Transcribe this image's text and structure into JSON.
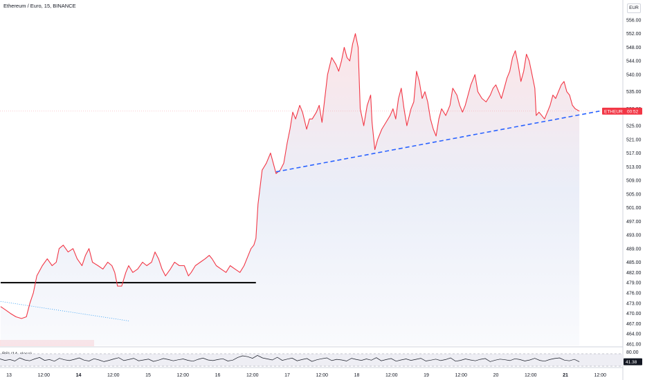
{
  "header": {
    "title": "Ethereum / Euro, 15, BINANCE",
    "currency": "EUR"
  },
  "rsi": {
    "label": "RSI (14, close)",
    "upper_label": "80.00",
    "current_label": "41.38",
    "current": 41.38,
    "upper": 80,
    "lower": 20
  },
  "price_badge": {
    "symbol": "ETHEUR",
    "countdown": "00:52",
    "price": 529.3
  },
  "colors": {
    "price_line": "#f23645",
    "area_fill": "#dfe6f5",
    "trendline": "#2962ff",
    "support_line": "#000000",
    "dotted_line": "#2196f3",
    "rsi_line": "#131722"
  },
  "chart_data": {
    "type": "line",
    "title": "Ethereum / Euro, 15, BINANCE",
    "ylim": [
      460,
      557
    ],
    "y_ticks": [
      461,
      464,
      467,
      470,
      473,
      476,
      479,
      482,
      485,
      489,
      493,
      497,
      501,
      505,
      509,
      513,
      517,
      521,
      525,
      530,
      535,
      540,
      544,
      548,
      552,
      556
    ],
    "x_range_days": [
      12.88,
      21.2
    ],
    "x_ticks": [
      {
        "day": 13,
        "label": "13",
        "bold": false
      },
      {
        "day": 13.5,
        "label": "12:00",
        "bold": false
      },
      {
        "day": 14,
        "label": "14",
        "bold": true
      },
      {
        "day": 14.5,
        "label": "12:00",
        "bold": false
      },
      {
        "day": 15,
        "label": "15",
        "bold": false
      },
      {
        "day": 15.5,
        "label": "12:00",
        "bold": false
      },
      {
        "day": 16,
        "label": "16",
        "bold": false
      },
      {
        "day": 16.5,
        "label": "12:00",
        "bold": false
      },
      {
        "day": 17,
        "label": "17",
        "bold": false
      },
      {
        "day": 17.5,
        "label": "12:00",
        "bold": false
      },
      {
        "day": 18,
        "label": "18",
        "bold": false
      },
      {
        "day": 18.5,
        "label": "12:00",
        "bold": false
      },
      {
        "day": 19,
        "label": "19",
        "bold": false
      },
      {
        "day": 19.5,
        "label": "12:00",
        "bold": false
      },
      {
        "day": 20,
        "label": "20",
        "bold": false
      },
      {
        "day": 20.5,
        "label": "12:00",
        "bold": false
      },
      {
        "day": 21,
        "label": "21",
        "bold": true
      },
      {
        "day": 21.5,
        "label": "12:00",
        "bold": false
      }
    ],
    "series": [
      {
        "points": [
          [
            12.88,
            472
          ],
          [
            12.95,
            471
          ],
          [
            13.02,
            470
          ],
          [
            13.1,
            469
          ],
          [
            13.18,
            468.5
          ],
          [
            13.25,
            469
          ],
          [
            13.3,
            473
          ],
          [
            13.35,
            476
          ],
          [
            13.4,
            481
          ],
          [
            13.48,
            484
          ],
          [
            13.55,
            486
          ],
          [
            13.62,
            484
          ],
          [
            13.68,
            485
          ],
          [
            13.72,
            489
          ],
          [
            13.78,
            490
          ],
          [
            13.85,
            488
          ],
          [
            13.92,
            489
          ],
          [
            13.98,
            486
          ],
          [
            14.05,
            484
          ],
          [
            14.1,
            487
          ],
          [
            14.15,
            489
          ],
          [
            14.2,
            485
          ],
          [
            14.28,
            484
          ],
          [
            14.35,
            483
          ],
          [
            14.42,
            485
          ],
          [
            14.48,
            484
          ],
          [
            14.52,
            482
          ],
          [
            14.56,
            478
          ],
          [
            14.62,
            478
          ],
          [
            14.68,
            482
          ],
          [
            14.72,
            484
          ],
          [
            14.78,
            482
          ],
          [
            14.85,
            483
          ],
          [
            14.92,
            485
          ],
          [
            14.98,
            484
          ],
          [
            15.05,
            485
          ],
          [
            15.1,
            488
          ],
          [
            15.15,
            486
          ],
          [
            15.2,
            483
          ],
          [
            15.25,
            481
          ],
          [
            15.32,
            483
          ],
          [
            15.38,
            485
          ],
          [
            15.45,
            484
          ],
          [
            15.52,
            484
          ],
          [
            15.58,
            481
          ],
          [
            15.62,
            482
          ],
          [
            15.68,
            484
          ],
          [
            15.75,
            485
          ],
          [
            15.82,
            486
          ],
          [
            15.88,
            487
          ],
          [
            15.92,
            486
          ],
          [
            15.98,
            484
          ],
          [
            16.05,
            483
          ],
          [
            16.12,
            482
          ],
          [
            16.18,
            484
          ],
          [
            16.25,
            483
          ],
          [
            16.32,
            482
          ],
          [
            16.38,
            484
          ],
          [
            16.42,
            486
          ],
          [
            16.48,
            489
          ],
          [
            16.52,
            490
          ],
          [
            16.55,
            492
          ],
          [
            16.58,
            502
          ],
          [
            16.61,
            507
          ],
          [
            16.64,
            512
          ],
          [
            16.7,
            514
          ],
          [
            16.76,
            517
          ],
          [
            16.8,
            514
          ],
          [
            16.84,
            511
          ],
          [
            16.9,
            512
          ],
          [
            16.95,
            514
          ],
          [
            17.0,
            520
          ],
          [
            17.04,
            524
          ],
          [
            17.08,
            529
          ],
          [
            17.12,
            527
          ],
          [
            17.18,
            531
          ],
          [
            17.22,
            529
          ],
          [
            17.28,
            524
          ],
          [
            17.32,
            527
          ],
          [
            17.36,
            527
          ],
          [
            17.42,
            529
          ],
          [
            17.46,
            531
          ],
          [
            17.5,
            526
          ],
          [
            17.54,
            533
          ],
          [
            17.58,
            540
          ],
          [
            17.64,
            545
          ],
          [
            17.7,
            543
          ],
          [
            17.74,
            541
          ],
          [
            17.78,
            544
          ],
          [
            17.82,
            548
          ],
          [
            17.86,
            545
          ],
          [
            17.9,
            544
          ],
          [
            17.94,
            549
          ],
          [
            17.98,
            552
          ],
          [
            18.02,
            548
          ],
          [
            18.05,
            530
          ],
          [
            18.1,
            525
          ],
          [
            18.15,
            531
          ],
          [
            18.2,
            534
          ],
          [
            18.22,
            526
          ],
          [
            18.26,
            518
          ],
          [
            18.3,
            521
          ],
          [
            18.36,
            524
          ],
          [
            18.42,
            526
          ],
          [
            18.48,
            528
          ],
          [
            18.52,
            530
          ],
          [
            18.56,
            527
          ],
          [
            18.6,
            533
          ],
          [
            18.64,
            536
          ],
          [
            18.68,
            530
          ],
          [
            18.72,
            525
          ],
          [
            18.78,
            530
          ],
          [
            18.82,
            532
          ],
          [
            18.86,
            541
          ],
          [
            18.9,
            538
          ],
          [
            18.94,
            533
          ],
          [
            18.98,
            535
          ],
          [
            19.02,
            532
          ],
          [
            19.06,
            527
          ],
          [
            19.1,
            524
          ],
          [
            19.14,
            522
          ],
          [
            19.18,
            527
          ],
          [
            19.22,
            530
          ],
          [
            19.28,
            528
          ],
          [
            19.34,
            531
          ],
          [
            19.38,
            536
          ],
          [
            19.44,
            534
          ],
          [
            19.48,
            531
          ],
          [
            19.52,
            529
          ],
          [
            19.56,
            531
          ],
          [
            19.6,
            534
          ],
          [
            19.64,
            537
          ],
          [
            19.7,
            540
          ],
          [
            19.74,
            535
          ],
          [
            19.8,
            533
          ],
          [
            19.86,
            532
          ],
          [
            19.92,
            534
          ],
          [
            19.96,
            536
          ],
          [
            20.0,
            537
          ],
          [
            20.04,
            535
          ],
          [
            20.08,
            533
          ],
          [
            20.12,
            536
          ],
          [
            20.16,
            539
          ],
          [
            20.2,
            541
          ],
          [
            20.24,
            545
          ],
          [
            20.28,
            547
          ],
          [
            20.32,
            543
          ],
          [
            20.36,
            538
          ],
          [
            20.4,
            541
          ],
          [
            20.44,
            546
          ],
          [
            20.48,
            544
          ],
          [
            20.52,
            540
          ],
          [
            20.56,
            536
          ],
          [
            20.58,
            528
          ],
          [
            20.62,
            529
          ],
          [
            20.66,
            528
          ],
          [
            20.7,
            527
          ],
          [
            20.74,
            529
          ],
          [
            20.78,
            531
          ],
          [
            20.82,
            534
          ],
          [
            20.86,
            533
          ],
          [
            20.9,
            535
          ],
          [
            20.94,
            537
          ],
          [
            20.98,
            538
          ],
          [
            21.02,
            535
          ],
          [
            21.06,
            534
          ],
          [
            21.1,
            531
          ],
          [
            21.14,
            530
          ],
          [
            21.2,
            529.3
          ]
        ]
      }
    ],
    "rsi_series": [
      55,
      48,
      52,
      45,
      60,
      50,
      46,
      55,
      62,
      48,
      52,
      44,
      58,
      51,
      47,
      53,
      60,
      49,
      45,
      56,
      50,
      42,
      48,
      55,
      61,
      47,
      52,
      58,
      46,
      50,
      54,
      43,
      49,
      57,
      52,
      46,
      51,
      55,
      48,
      44,
      53,
      59,
      50,
      47,
      52,
      56,
      45,
      49,
      62,
      70,
      66,
      58,
      72,
      60,
      55,
      50,
      63,
      48,
      54,
      59,
      46,
      52,
      57,
      43,
      51,
      56,
      60,
      47,
      53,
      50,
      45,
      58,
      52,
      48,
      55,
      49,
      61,
      46,
      52,
      57,
      44,
      50,
      55,
      48,
      53,
      58,
      45,
      49,
      54,
      47,
      52,
      60,
      44,
      48,
      55,
      50,
      46,
      53,
      57,
      42,
      49,
      54,
      51,
      47,
      56,
      52,
      45,
      50,
      58,
      48,
      44,
      52,
      57,
      60,
      49,
      46,
      53,
      41.38
    ],
    "drawings": {
      "support_line": {
        "y": 479,
        "x_from": 12.88,
        "x_to": 16.55
      },
      "dotted_line": {
        "from": [
          12.88,
          473.5
        ],
        "to": [
          14.72,
          467.8
        ]
      },
      "rising_trendline": {
        "from": [
          16.84,
          511.5
        ],
        "to": [
          21.49,
          529.3
        ]
      }
    }
  }
}
